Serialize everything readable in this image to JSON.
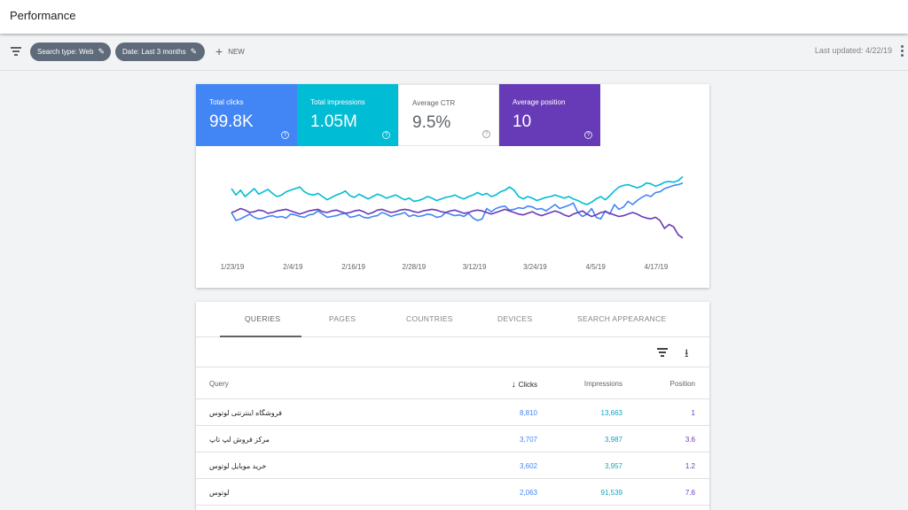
{
  "header": {
    "title": "Performance"
  },
  "filters": {
    "chips": [
      {
        "label": "Search type: Web"
      },
      {
        "label": "Date: Last 3 months"
      }
    ],
    "new_label": "NEW",
    "last_updated": "Last updated: 4/22/19"
  },
  "metrics": [
    {
      "label": "Total clicks",
      "value": "99.8K",
      "color": "#4285f4",
      "selected": true
    },
    {
      "label": "Total impressions",
      "value": "1.05M",
      "color": "#00bcd4",
      "selected": true
    },
    {
      "label": "Average CTR",
      "value": "9.5%",
      "color": "#ffffff",
      "selected": false
    },
    {
      "label": "Average position",
      "value": "10",
      "color": "#673ab7",
      "selected": true
    }
  ],
  "chart_data": {
    "type": "line",
    "x_tick_labels": [
      "1/23/19",
      "2/4/19",
      "2/16/19",
      "2/28/19",
      "3/12/19",
      "3/24/19",
      "4/5/19",
      "4/17/19"
    ],
    "y_axis_labels_shown": false,
    "grid": false,
    "legend": "none",
    "series": [
      {
        "color": "#4285f4",
        "values": [
          0.5,
          0.6,
          0.58,
          0.55,
          0.52,
          0.56,
          0.58,
          0.57,
          0.55,
          0.54,
          0.56,
          0.55,
          0.57,
          0.52,
          0.53,
          0.55,
          0.56,
          0.53,
          0.52,
          0.48,
          0.52,
          0.56,
          0.55,
          0.54,
          0.52,
          0.51,
          0.56,
          0.55,
          0.53,
          0.56,
          0.57,
          0.55,
          0.54,
          0.5,
          0.52,
          0.55,
          0.53,
          0.52,
          0.5,
          0.55,
          0.53,
          0.55,
          0.54,
          0.52,
          0.53,
          0.56,
          0.55,
          0.5,
          0.52,
          0.54,
          0.53,
          0.55,
          0.51,
          0.57,
          0.6,
          0.58,
          0.45,
          0.49,
          0.45,
          0.43,
          0.42,
          0.47,
          0.46,
          0.44,
          0.45,
          0.42,
          0.43,
          0.46,
          0.45,
          0.48,
          0.44,
          0.4,
          0.45,
          0.43,
          0.41,
          0.38,
          0.5,
          0.55,
          0.52,
          0.45,
          0.56,
          0.58,
          0.48,
          0.52,
          0.4,
          0.46,
          0.43,
          0.36,
          0.4,
          0.35,
          0.31,
          0.28,
          0.3,
          0.25,
          0.24,
          0.2,
          0.18,
          0.16,
          0.15,
          0.13
        ]
      },
      {
        "color": "#00bcd4",
        "values": [
          0.2,
          0.28,
          0.22,
          0.3,
          0.25,
          0.2,
          0.27,
          0.24,
          0.21,
          0.26,
          0.3,
          0.28,
          0.24,
          0.22,
          0.2,
          0.18,
          0.24,
          0.27,
          0.28,
          0.26,
          0.3,
          0.34,
          0.31,
          0.28,
          0.26,
          0.23,
          0.29,
          0.31,
          0.27,
          0.3,
          0.33,
          0.3,
          0.27,
          0.29,
          0.32,
          0.3,
          0.28,
          0.31,
          0.34,
          0.32,
          0.36,
          0.35,
          0.33,
          0.3,
          0.32,
          0.35,
          0.33,
          0.31,
          0.3,
          0.28,
          0.31,
          0.33,
          0.3,
          0.28,
          0.25,
          0.28,
          0.26,
          0.3,
          0.28,
          0.24,
          0.22,
          0.18,
          0.22,
          0.3,
          0.33,
          0.3,
          0.32,
          0.35,
          0.33,
          0.31,
          0.3,
          0.28,
          0.3,
          0.32,
          0.3,
          0.33,
          0.35,
          0.38,
          0.4,
          0.37,
          0.33,
          0.3,
          0.34,
          0.29,
          0.23,
          0.18,
          0.16,
          0.15,
          0.17,
          0.19,
          0.17,
          0.13,
          0.14,
          0.17,
          0.15,
          0.12,
          0.11,
          0.12,
          0.1,
          0.05
        ]
      },
      {
        "color": "#673ab7",
        "values": [
          0.5,
          0.48,
          0.45,
          0.47,
          0.5,
          0.49,
          0.47,
          0.48,
          0.51,
          0.5,
          0.48,
          0.47,
          0.46,
          0.48,
          0.5,
          0.52,
          0.5,
          0.48,
          0.47,
          0.46,
          0.49,
          0.5,
          0.48,
          0.47,
          0.49,
          0.51,
          0.5,
          0.48,
          0.47,
          0.49,
          0.52,
          0.5,
          0.47,
          0.46,
          0.48,
          0.5,
          0.49,
          0.47,
          0.46,
          0.47,
          0.49,
          0.5,
          0.48,
          0.47,
          0.46,
          0.47,
          0.49,
          0.5,
          0.48,
          0.47,
          0.49,
          0.51,
          0.5,
          0.48,
          0.47,
          0.48,
          0.5,
          0.52,
          0.5,
          0.48,
          0.46,
          0.48,
          0.5,
          0.52,
          0.53,
          0.51,
          0.49,
          0.52,
          0.54,
          0.52,
          0.5,
          0.48,
          0.5,
          0.53,
          0.55,
          0.52,
          0.5,
          0.48,
          0.52,
          0.55,
          0.53,
          0.5,
          0.49,
          0.51,
          0.53,
          0.55,
          0.54,
          0.52,
          0.5,
          0.52,
          0.55,
          0.57,
          0.58,
          0.56,
          0.6,
          0.7,
          0.65,
          0.68,
          0.78,
          0.82
        ]
      }
    ]
  },
  "tabs": [
    {
      "label": "QUERIES",
      "active": true
    },
    {
      "label": "PAGES",
      "active": false
    },
    {
      "label": "COUNTRIES",
      "active": false
    },
    {
      "label": "DEVICES",
      "active": false
    },
    {
      "label": "SEARCH APPEARANCE",
      "active": false
    }
  ],
  "table": {
    "columns": {
      "query": "Query",
      "clicks": "Clicks",
      "impressions": "Impressions",
      "position": "Position"
    },
    "rows": [
      {
        "query": "فروشگاه اینترنتی لوتوس",
        "clicks": "8,810",
        "impressions": "13,663",
        "position": "1"
      },
      {
        "query": "مرکز فروش لپ تاپ",
        "clicks": "3,707",
        "impressions": "3,987",
        "position": "3.6"
      },
      {
        "query": "خرید موبایل لوتوس",
        "clicks": "3,602",
        "impressions": "3,957",
        "position": "1.2"
      },
      {
        "query": "لوتوس",
        "clicks": "2,063",
        "impressions": "91,539",
        "position": "7.6"
      }
    ]
  }
}
